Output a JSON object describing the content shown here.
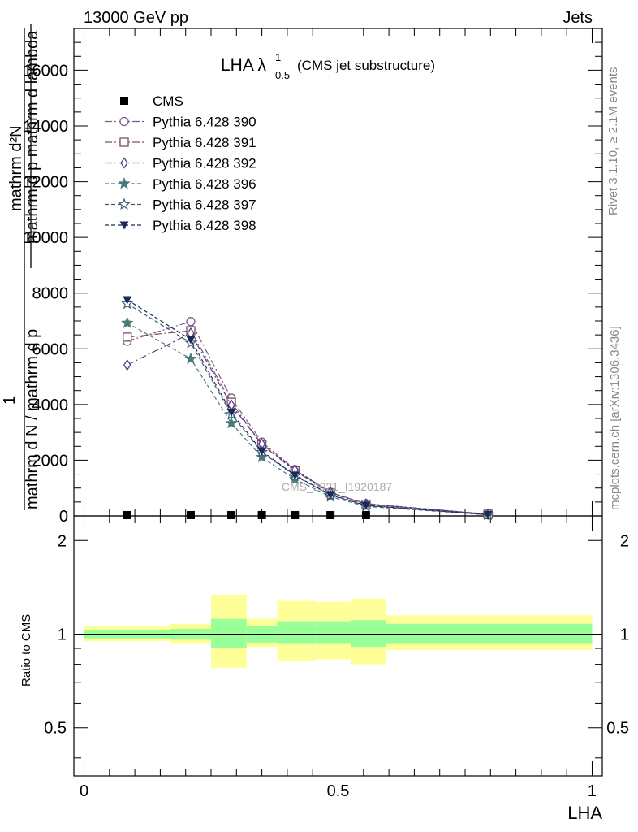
{
  "header": {
    "left": "13000 GeV pp",
    "right": "Jets"
  },
  "side_text": {
    "rivet": "Rivet 3.1.10, ≥ 2.1M events",
    "mcplots": "mcplots.cern.ch [arXiv:1306.3436]"
  },
  "watermark": "CMS_2021_I1920187",
  "chart_data": {
    "type": "line",
    "title_main": "LHA λ",
    "title_sup": "1",
    "title_sub": "0.5",
    "title_note": "(CMS jet substructure)",
    "xlabel": "LHA",
    "ylabel_main_numerator": "1",
    "ylabel_main_denominator": "mathrm d N / mathrm d p",
    "ylabel_top": "mathrm d²N",
    "ylabel_bottom": "mathrm d p mathrm d lambda",
    "ylabel_ratio": "Ratio to CMS",
    "xlim": [
      -0.02,
      1.02
    ],
    "ylim": [
      0,
      17500
    ],
    "ratio_ylim_log": [
      0.35,
      2.4
    ],
    "xticks": [
      "0",
      "0.5",
      "1"
    ],
    "yticks": [
      "0",
      "2000",
      "4000",
      "6000",
      "8000",
      "10000",
      "12000",
      "14000",
      "16000"
    ],
    "ratio_yticks": [
      "0.5",
      "1",
      "2"
    ],
    "x": [
      0.085,
      0.21,
      0.29,
      0.35,
      0.415,
      0.485,
      0.555,
      0.795
    ],
    "series": [
      {
        "name": "CMS",
        "color": "#000000",
        "marker": "square-filled",
        "dash": "",
        "values": [
          30,
          30,
          30,
          30,
          30,
          30,
          30,
          30
        ]
      },
      {
        "name": "Pythia 6.428 390",
        "color": "#7a5a8a",
        "marker": "circle-open",
        "dash": "9,3,2,3",
        "values": [
          6270,
          6980,
          4230,
          2650,
          1670,
          850,
          440,
          65
        ]
      },
      {
        "name": "Pythia 6.428 391",
        "color": "#7a5060",
        "marker": "square-open",
        "dash": "9,3,2,3",
        "values": [
          6420,
          6650,
          4080,
          2560,
          1620,
          820,
          420,
          60
        ]
      },
      {
        "name": "Pythia 6.428 392",
        "color": "#5a3a8a",
        "marker": "diamond-open",
        "dash": "9,3,2,3",
        "values": [
          5420,
          6560,
          3980,
          2580,
          1650,
          840,
          430,
          60
        ]
      },
      {
        "name": "Pythia 6.428 396",
        "color": "#4a7a7a",
        "marker": "star-filled",
        "dash": "5,3",
        "values": [
          6930,
          5640,
          3330,
          2110,
          1320,
          690,
          340,
          40
        ]
      },
      {
        "name": "Pythia 6.428 397",
        "color": "#3a5a70",
        "marker": "star-open",
        "dash": "5,3",
        "values": [
          7620,
          6210,
          3650,
          2290,
          1440,
          750,
          370,
          45
        ]
      },
      {
        "name": "Pythia 6.428 398",
        "color": "#1a2a5a",
        "marker": "triangle-down-filled",
        "dash": "5,3",
        "values": [
          7760,
          6330,
          3720,
          2330,
          1460,
          760,
          380,
          45
        ]
      }
    ],
    "ratio_bands": {
      "edges": [
        0.0,
        0.17,
        0.25,
        0.32,
        0.38,
        0.455,
        0.525,
        0.595,
        1.0
      ],
      "inner_lo": [
        0.97,
        0.96,
        0.9,
        0.94,
        0.93,
        0.93,
        0.91,
        0.93
      ],
      "inner_hi": [
        1.03,
        1.04,
        1.12,
        1.06,
        1.1,
        1.1,
        1.11,
        1.08
      ],
      "outer_lo": [
        0.95,
        0.93,
        0.78,
        0.91,
        0.82,
        0.83,
        0.8,
        0.89
      ],
      "outer_hi": [
        1.06,
        1.08,
        1.34,
        1.12,
        1.28,
        1.27,
        1.3,
        1.15
      ]
    },
    "band_colors": {
      "inner": "#99ff99",
      "outer": "#ffff99"
    },
    "legend_position": "top-left"
  }
}
